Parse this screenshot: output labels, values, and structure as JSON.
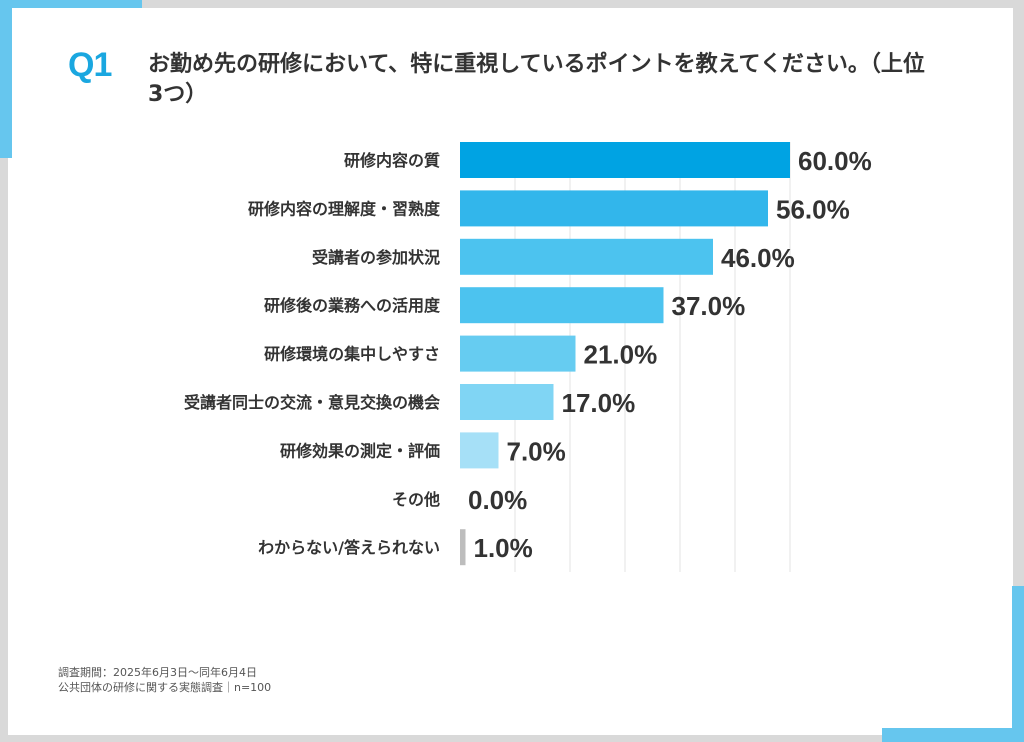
{
  "question": {
    "label": "Q1",
    "text": "お勤め先の研修において、特に重視しているポイントを教えてください。（上位3つ）"
  },
  "colors": {
    "accent": "#1aa7e0",
    "bar_scale": [
      "#00a3e3",
      "#32b6eb",
      "#4cc3ef",
      "#4cc3ef",
      "#66ccf1",
      "#80d5f4",
      "#a6e0f7",
      "#c7ecfa",
      "#bdbdbd"
    ]
  },
  "chart_data": {
    "type": "bar",
    "orientation": "horizontal",
    "categories": [
      "研修内容の質",
      "研修内容の理解度・習熟度",
      "受講者の参加状況",
      "研修後の業務への活用度",
      "研修環境の集中しやすさ",
      "受講者同士の交流・意見交換の機会",
      "研修効果の測定・評価",
      "その他",
      "わからない/答えられない"
    ],
    "values": [
      60.0,
      56.0,
      46.0,
      37.0,
      21.0,
      17.0,
      7.0,
      0.0,
      1.0
    ],
    "value_labels": [
      "60.0%",
      "56.0%",
      "46.0%",
      "37.0%",
      "21.0%",
      "17.0%",
      "7.0%",
      "0.0%",
      "1.0%"
    ],
    "xlim": [
      0,
      60
    ],
    "grid": true,
    "legend": "none"
  },
  "footnote": {
    "line1": "調査期間：2025年6月3日〜同年6月4日",
    "line2": "公共団体の研修に関する実態調査｜n=100"
  }
}
